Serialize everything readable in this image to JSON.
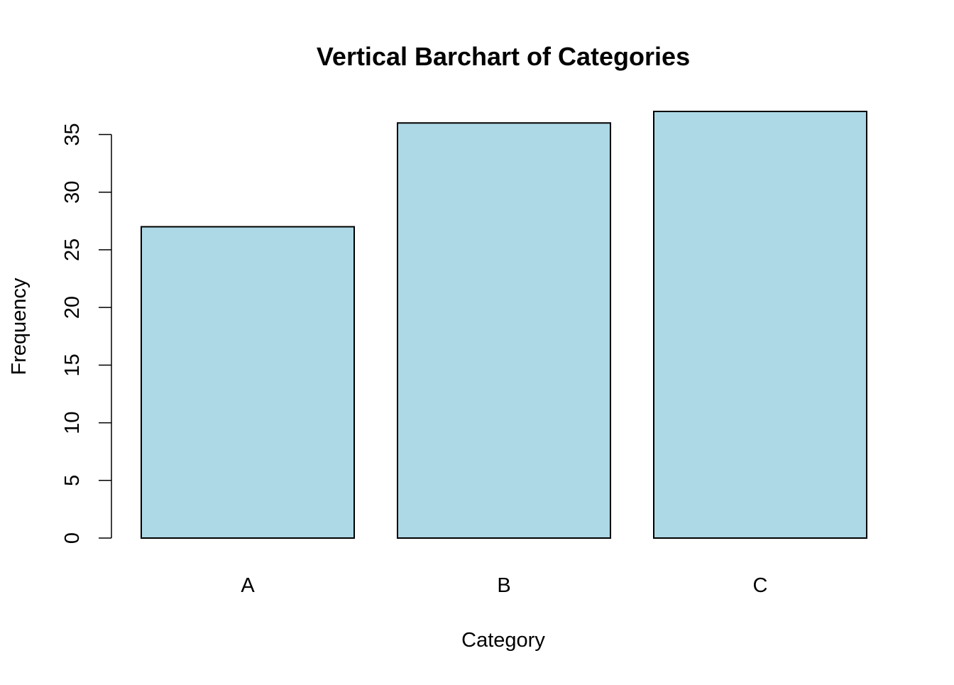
{
  "chart_data": {
    "type": "bar",
    "title": "Vertical Barchart of Categories",
    "xlabel": "Category",
    "ylabel": "Frequency",
    "categories": [
      "A",
      "B",
      "C"
    ],
    "values": [
      27,
      36,
      37
    ],
    "ylim": [
      0,
      37
    ],
    "yticks": [
      0,
      5,
      10,
      15,
      20,
      25,
      30,
      35
    ],
    "bar_color": "#add8e6",
    "grid": false,
    "legend": "none"
  }
}
